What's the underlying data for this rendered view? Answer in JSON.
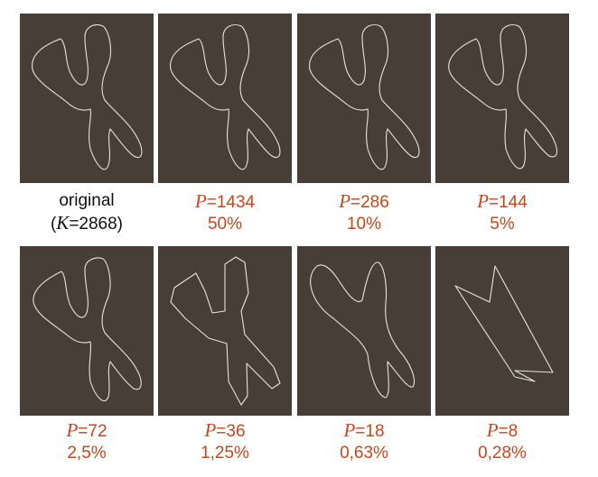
{
  "panels": [
    {
      "label_var": "",
      "label_value": "original",
      "sub_prefix": "(",
      "sub_var": "K",
      "sub_value": "=2868)",
      "text_color": "#111111"
    },
    {
      "label_var": "P",
      "label_value": "=1434",
      "percent": "50%",
      "text_color": "#c8461c"
    },
    {
      "label_var": "P",
      "label_value": "=286",
      "percent": "10%",
      "text_color": "#c8461c"
    },
    {
      "label_var": "P",
      "label_value": "=144",
      "percent": "5%",
      "text_color": "#c8461c"
    },
    {
      "label_var": "P",
      "label_value": "=72",
      "percent": "2,5%",
      "text_color": "#c8461c"
    },
    {
      "label_var": "P",
      "label_value": "=36",
      "percent": "1,25%",
      "text_color": "#c8461c"
    },
    {
      "label_var": "P",
      "label_value": "=18",
      "percent": "0,63%",
      "text_color": "#c8461c"
    },
    {
      "label_var": "P",
      "label_value": "=8",
      "percent": "0,28%",
      "text_color": "#c8461c"
    }
  ],
  "colors": {
    "panel_background": "#473f37",
    "contour": "#e8e2d6",
    "accent": "#c8461c"
  }
}
